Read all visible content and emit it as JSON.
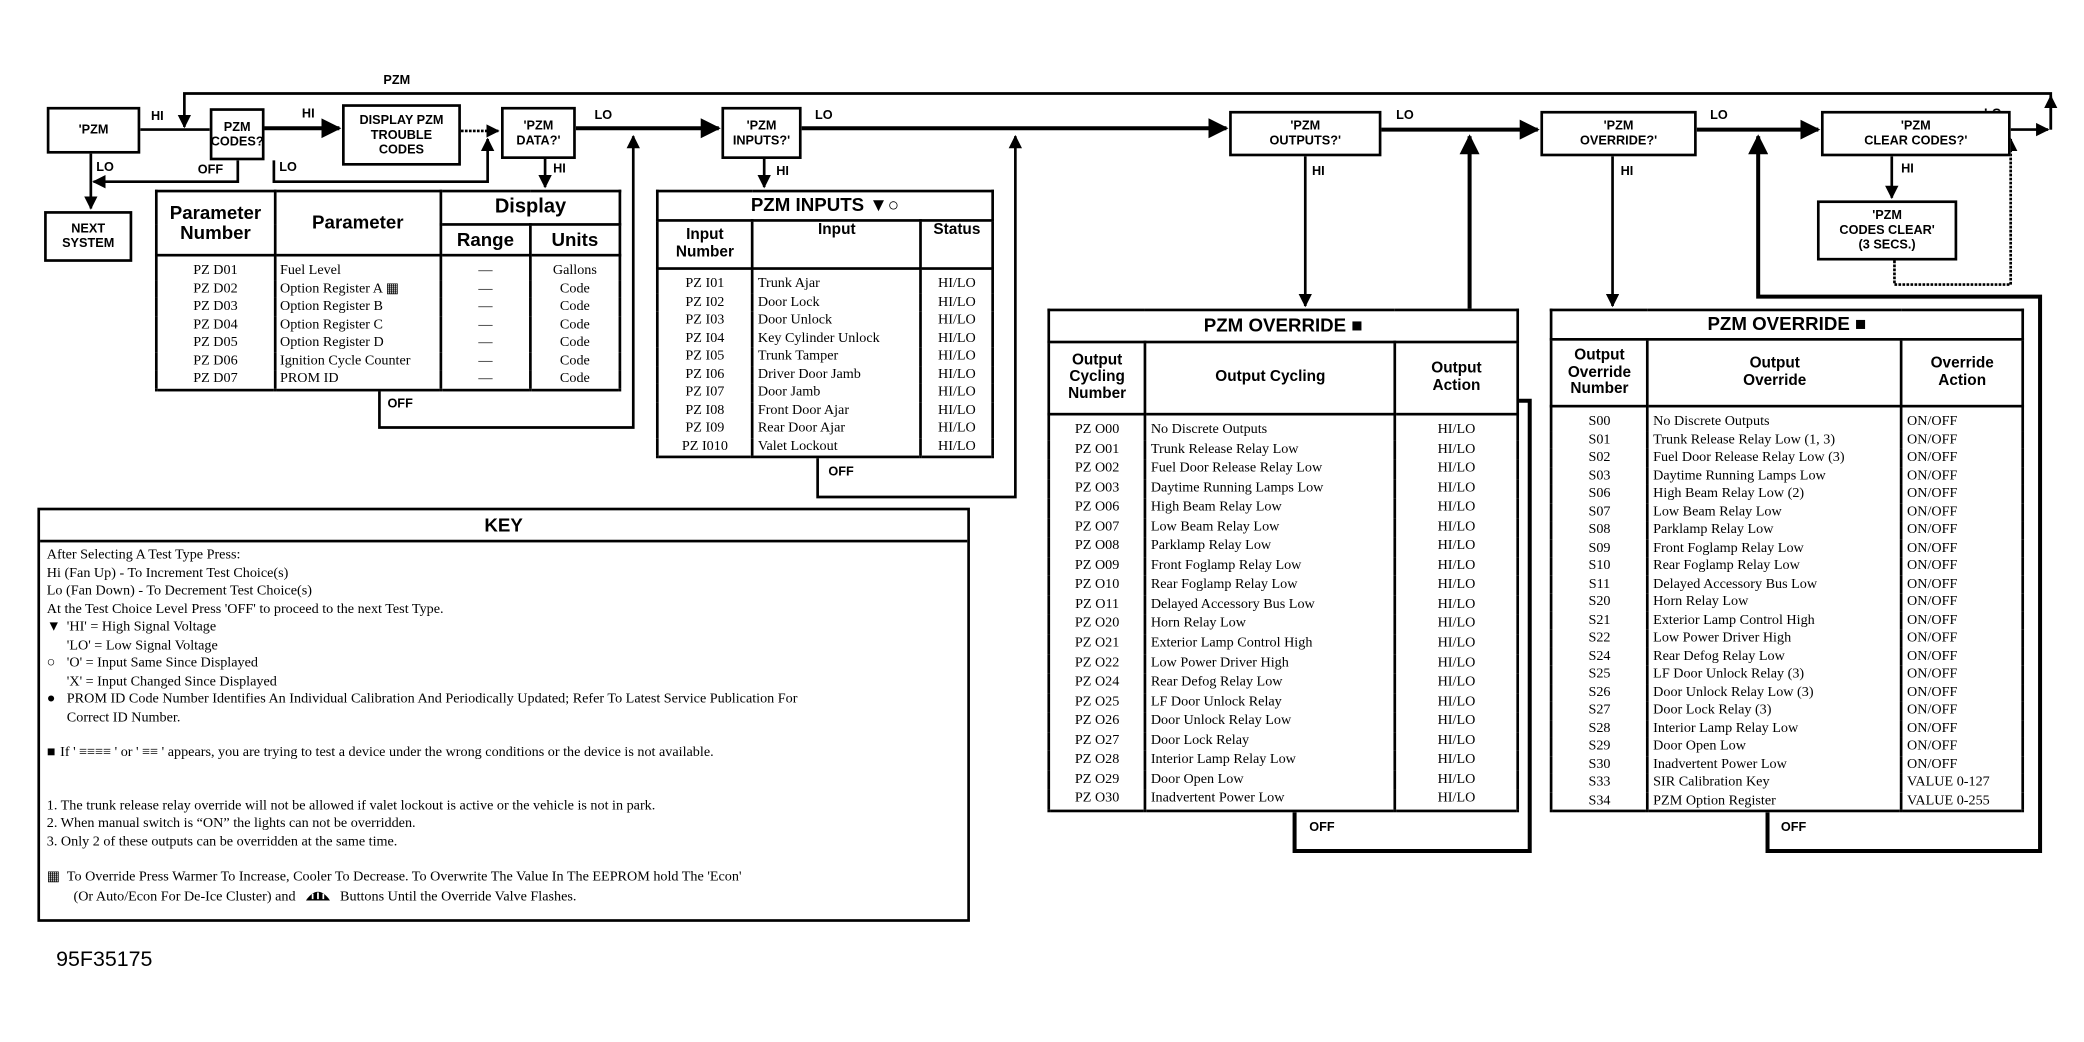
{
  "labels": {
    "pzm_top": "PZM",
    "hi": "HI",
    "lo": "LO",
    "off": "OFF"
  },
  "boxes": {
    "pzm": "'PZM",
    "pzm_codes": "PZM\nCODES?",
    "display_codes": "DISPLAY PZM\nTROUBLE\nCODES",
    "pzm_data": "'PZM\nDATA?'",
    "next_system": "NEXT\nSYSTEM",
    "pzm_inputs": "'PZM\nINPUTS?'",
    "pzm_outputs": "'PZM\nOUTPUTS?'",
    "pzm_override": "'PZM\nOVERRIDE?'",
    "pzm_clear_codes": "'PZM\nCLEAR CODES?'",
    "pzm_codes_clear": "'PZM\nCODES CLEAR'\n(3 SECS.)"
  },
  "data_table": {
    "headers": {
      "number": "Parameter Number",
      "parameter": "Parameter",
      "display": "Display",
      "range": "Range",
      "units": "Units"
    },
    "rows": [
      [
        "PZ D01",
        "Fuel Level",
        "—",
        "Gallons"
      ],
      [
        "PZ D02",
        "Option Register A ▦",
        "—",
        "Code"
      ],
      [
        "PZ D03",
        "Option Register B",
        "—",
        "Code"
      ],
      [
        "PZ D04",
        "Option Register C",
        "—",
        "Code"
      ],
      [
        "PZ D05",
        "Option Register D",
        "—",
        "Code"
      ],
      [
        "PZ D06",
        "Ignition Cycle Counter",
        "—",
        "Code"
      ],
      [
        "PZ D07",
        "PROM ID",
        "—",
        "Code"
      ]
    ]
  },
  "inputs_table": {
    "title": "PZM INPUTS ▼○",
    "headers": [
      "Input Number",
      "Input",
      "Status"
    ],
    "rows": [
      [
        "PZ I01",
        "Trunk Ajar",
        "HI/LO"
      ],
      [
        "PZ I02",
        "Door Lock",
        "HI/LO"
      ],
      [
        "PZ I03",
        "Door Unlock",
        "HI/LO"
      ],
      [
        "PZ I04",
        "Key Cylinder Unlock",
        "HI/LO"
      ],
      [
        "PZ I05",
        "Trunk Tamper",
        "HI/LO"
      ],
      [
        "PZ I06",
        "Driver Door Jamb",
        "HI/LO"
      ],
      [
        "PZ I07",
        "Door Jamb",
        "HI/LO"
      ],
      [
        "PZ I08",
        "Front  Door Ajar",
        "HI/LO"
      ],
      [
        "PZ I09",
        "Rear Door Ajar",
        "HI/LO"
      ],
      [
        "PZ I010",
        "Valet Lockout",
        "HI/LO"
      ]
    ]
  },
  "outputs_table": {
    "title": "PZM OVERRIDE ■",
    "headers": [
      "Output Cycling Number",
      "Output Cycling",
      "Output Action"
    ],
    "rows": [
      [
        "PZ O00",
        "No Discrete Outputs",
        "HI/LO"
      ],
      [
        "PZ O01",
        "Trunk Release Relay Low",
        "HI/LO"
      ],
      [
        "PZ O02",
        "Fuel Door Release Relay Low",
        "HI/LO"
      ],
      [
        "PZ O03",
        "Daytime Running Lamps Low",
        "HI/LO"
      ],
      [
        "PZ O06",
        "High Beam Relay Low",
        "HI/LO"
      ],
      [
        "PZ O07",
        "Low Beam Relay Low",
        "HI/LO"
      ],
      [
        "PZ O08",
        "Parklamp Relay Low",
        "HI/LO"
      ],
      [
        "PZ O09",
        "Front Foglamp Relay Low",
        "HI/LO"
      ],
      [
        "PZ O10",
        "Rear Foglamp Relay Low",
        "HI/LO"
      ],
      [
        "PZ O11",
        "Delayed Accessory Bus Low",
        "HI/LO"
      ],
      [
        "PZ O20",
        "Horn Relay Low",
        "HI/LO"
      ],
      [
        "PZ O21",
        "Exterior Lamp Control High",
        "HI/LO"
      ],
      [
        "PZ O22",
        "Low Power Driver High",
        "HI/LO"
      ],
      [
        "PZ O24",
        "Rear Defog Relay Low",
        "HI/LO"
      ],
      [
        "PZ O25",
        "LF Door Unlock Relay",
        "HI/LO"
      ],
      [
        "PZ O26",
        "Door Unlock Relay Low",
        "HI/LO"
      ],
      [
        "PZ O27",
        "Door Lock Relay",
        "HI/LO"
      ],
      [
        "PZ O28",
        "Interior Lamp Relay Low",
        "HI/LO"
      ],
      [
        "PZ O29",
        "Door Open Low",
        "HI/LO"
      ],
      [
        "PZ O30",
        "Inadvertent Power Low",
        "HI/LO"
      ]
    ]
  },
  "override_table": {
    "title": "PZM OVERRIDE ■",
    "headers": [
      "Output Override Number",
      "Output Override",
      "Override Action"
    ],
    "rows": [
      [
        "S00",
        "No Discrete Outputs",
        "ON/OFF"
      ],
      [
        "S01",
        "Trunk Release Relay Low (1, 3)",
        "ON/OFF"
      ],
      [
        "S02",
        "Fuel Door Release Relay Low (3)",
        "ON/OFF"
      ],
      [
        "S03",
        "Daytime Running Lamps Low",
        "ON/OFF"
      ],
      [
        "S06",
        "High Beam Relay Low (2)",
        "ON/OFF"
      ],
      [
        "S07",
        "Low Beam Relay Low",
        "ON/OFF"
      ],
      [
        "S08",
        "Parklamp Relay Low",
        "ON/OFF"
      ],
      [
        "S09",
        "Front Foglamp Relay Low",
        "ON/OFF"
      ],
      [
        "S10",
        "Rear Foglamp Relay Low",
        "ON/OFF"
      ],
      [
        "S11",
        "Delayed Accessory Bus Low",
        "ON/OFF"
      ],
      [
        "S20",
        "Horn Relay Low",
        "ON/OFF"
      ],
      [
        "S21",
        "Exterior Lamp Control High",
        "ON/OFF"
      ],
      [
        "S22",
        "Low Power Driver High",
        "ON/OFF"
      ],
      [
        "S24",
        "Rear Defog Relay Low",
        "ON/OFF"
      ],
      [
        "S25",
        "LF Door Unlock Relay (3)",
        "ON/OFF"
      ],
      [
        "S26",
        "Door Unlock Relay Low (3)",
        "ON/OFF"
      ],
      [
        "S27",
        "Door Lock Relay (3)",
        "ON/OFF"
      ],
      [
        "S28",
        "Interior Lamp Relay Low",
        "ON/OFF"
      ],
      [
        "S29",
        "Door Open Low",
        "ON/OFF"
      ],
      [
        "S30",
        "Inadvertent Power Low",
        "ON/OFF"
      ],
      [
        "S33",
        "SIR Calibration Key",
        "VALUE 0-127"
      ],
      [
        "S34",
        "PZM Option Register",
        "VALUE 0-255"
      ]
    ]
  },
  "key": {
    "title": "KEY",
    "intro": "After Selecting A Test Type Press:",
    "hi_line": "Hi (Fan Up) - To Increment Test Choice(s)",
    "lo_line": "Lo (Fan Down) - To Decrement Test Choice(s)",
    "off_line": "At the Test Choice Level Press 'OFF' to proceed to the next Test Type.",
    "tri_symbol": "▼",
    "tri_1": "'HI' = High Signal Voltage",
    "tri_2": "'LO' = Low Signal Voltage",
    "circle_symbol": "○",
    "circle_1": "'O' = Input Same Since Displayed",
    "circle_2": "'X' = Input Changed Since Displayed",
    "dot_symbol": "●",
    "dot_1": "PROM ID Code Number Identifies An Individual Calibration And Periodically Updated; Refer To Latest Service Publication For",
    "dot_2": "Correct ID Number.",
    "square_symbol": "■",
    "square_line": "If ' ≡≡≡≡ ' or '  ≡≡  ' appears, you are trying to test a device under the wrong conditions or the device is not available.",
    "notes": [
      "1.  The trunk release relay override will not be allowed if valet lockout is active or the vehicle is not in park.",
      "2.  When manual switch is “ON” the lights can not be overridden.",
      "3.  Only 2 of these outputs can be overridden at the same time."
    ],
    "grid_symbol": "▦",
    "grid_1": "To Override Press Warmer To Increase, Cooler To Decrease. To Overwrite The Value In The EEPROM hold The 'Econ'",
    "grid_2a": "(Or Auto/Econ For De-Ice Cluster) and",
    "defrost_icon": "defrost-icon",
    "grid_2b": "Buttons Until the Override Valve Flashes."
  },
  "figure_id": "95F35175"
}
